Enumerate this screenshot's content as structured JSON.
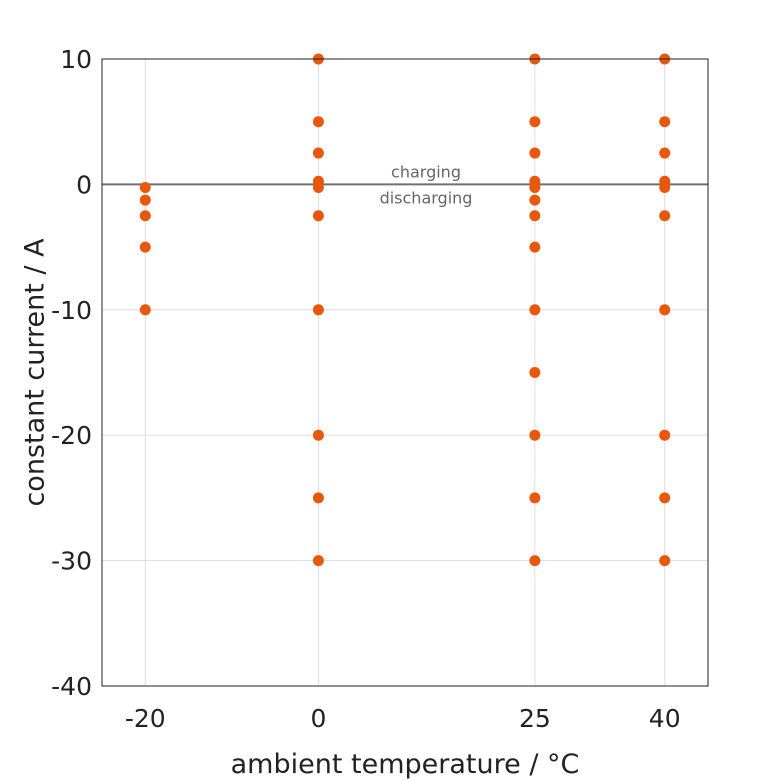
{
  "chart_data": {
    "type": "scatter",
    "xlabel": "ambient temperature / °C",
    "ylabel": "constant current / A",
    "x_ticks": [
      -20,
      0,
      25,
      40
    ],
    "y_ticks": [
      10,
      0,
      -10,
      -20,
      -30,
      -40
    ],
    "x_tick_labels": [
      "-20",
      "0",
      "25",
      "40"
    ],
    "y_tick_labels": [
      "10",
      "0",
      "-10",
      "-20",
      "-30",
      "-40"
    ],
    "xlim": [
      -25,
      45
    ],
    "ylim": [
      -40,
      10
    ],
    "grid": true,
    "reference_line_y": 0,
    "annotations": {
      "above": "charging",
      "below": "discharging"
    },
    "colors": {
      "points": "#e8580c",
      "reference_line": "#707070",
      "grid": "#dddddd"
    },
    "series": [
      {
        "points": [
          {
            "x": -20,
            "y": -0.25
          },
          {
            "x": -20,
            "y": -1.25
          },
          {
            "x": -20,
            "y": -2.5
          },
          {
            "x": -20,
            "y": -5
          },
          {
            "x": -20,
            "y": -10
          },
          {
            "x": 0,
            "y": 10
          },
          {
            "x": 0,
            "y": 5
          },
          {
            "x": 0,
            "y": 2.5
          },
          {
            "x": 0,
            "y": 0.25
          },
          {
            "x": 0,
            "y": -0.25
          },
          {
            "x": 0,
            "y": -2.5
          },
          {
            "x": 0,
            "y": -10
          },
          {
            "x": 0,
            "y": -20
          },
          {
            "x": 0,
            "y": -25
          },
          {
            "x": 0,
            "y": -30
          },
          {
            "x": 25,
            "y": 10
          },
          {
            "x": 25,
            "y": 5
          },
          {
            "x": 25,
            "y": 2.5
          },
          {
            "x": 25,
            "y": 0.25
          },
          {
            "x": 25,
            "y": -0.25
          },
          {
            "x": 25,
            "y": -1.25
          },
          {
            "x": 25,
            "y": -2.5
          },
          {
            "x": 25,
            "y": -5
          },
          {
            "x": 25,
            "y": -10
          },
          {
            "x": 25,
            "y": -15
          },
          {
            "x": 25,
            "y": -20
          },
          {
            "x": 25,
            "y": -25
          },
          {
            "x": 25,
            "y": -30
          },
          {
            "x": 40,
            "y": 10
          },
          {
            "x": 40,
            "y": 5
          },
          {
            "x": 40,
            "y": 2.5
          },
          {
            "x": 40,
            "y": 0.25
          },
          {
            "x": 40,
            "y": -0.25
          },
          {
            "x": 40,
            "y": -2.5
          },
          {
            "x": 40,
            "y": -10
          },
          {
            "x": 40,
            "y": -20
          },
          {
            "x": 40,
            "y": -25
          },
          {
            "x": 40,
            "y": -30
          }
        ]
      }
    ]
  }
}
